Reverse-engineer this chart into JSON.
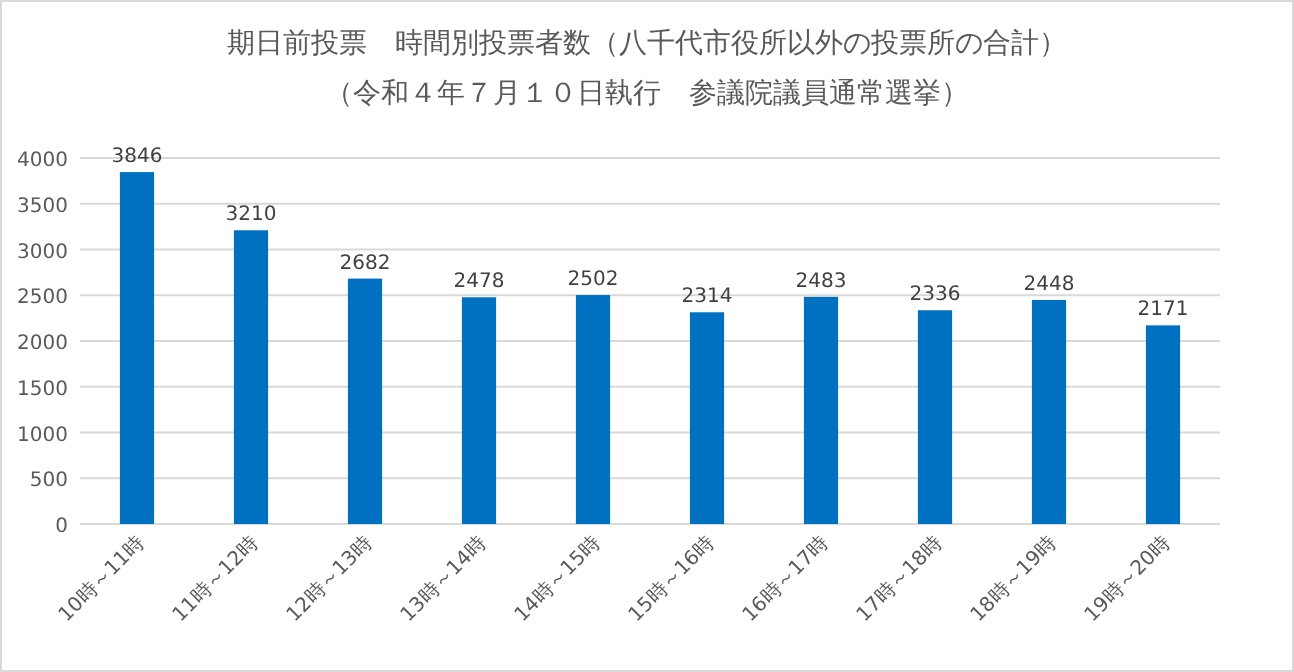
{
  "chart_data": {
    "type": "bar",
    "title": "期日前投票　時間別投票者数（八千代市役所以外の投票所の合計）",
    "subtitle": "（令和４年７月１０日執行　参議院議員通常選挙）",
    "categories": [
      "10時～11時",
      "11時～12時",
      "12時～13時",
      "13時～14時",
      "14時～15時",
      "15時～16時",
      "16時～17時",
      "17時～18時",
      "18時～19時",
      "19時～20時"
    ],
    "values": [
      3846,
      3210,
      2682,
      2478,
      2502,
      2314,
      2483,
      2336,
      2448,
      2171
    ],
    "color": "#0070c0",
    "ylim": [
      0,
      4000
    ],
    "yticks": [
      0,
      500,
      1000,
      1500,
      2000,
      2500,
      3000,
      3500,
      4000
    ],
    "grid": "y",
    "data_labels": true
  }
}
